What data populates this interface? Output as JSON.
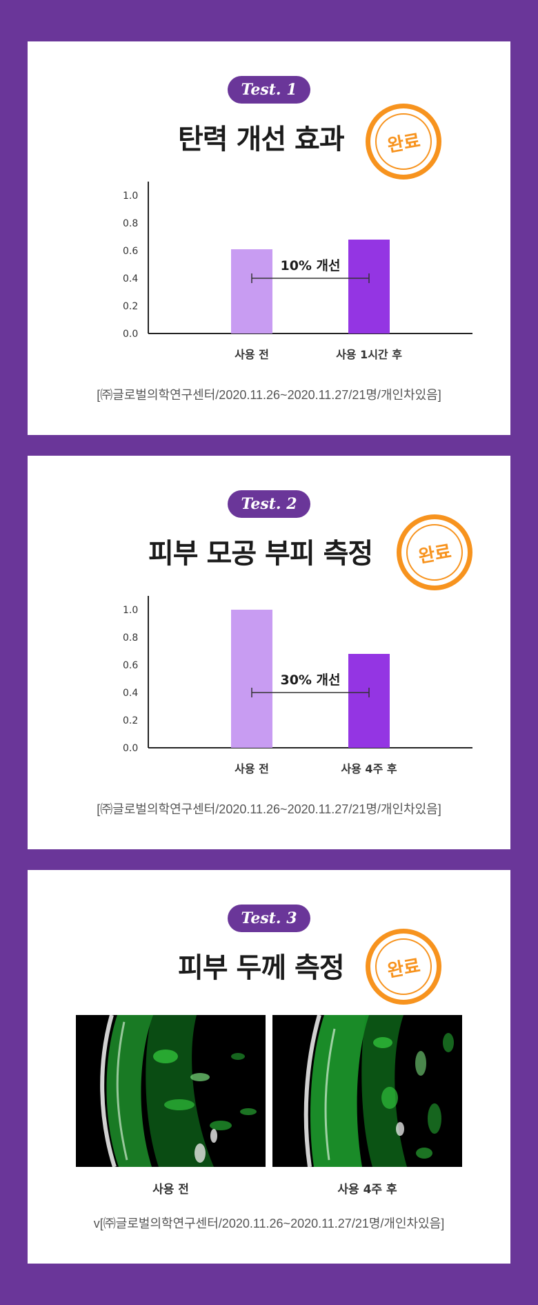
{
  "test1": {
    "pill": "Test. 1",
    "title": "탄력 개선 효과",
    "badge": "완료",
    "source": "[㈜글로벌의학연구센터/2020.11.26~2020.11.27/21명/개인차있음]"
  },
  "test2": {
    "pill": "Test. 2",
    "title": "피부 모공 부피 측정",
    "badge": "완료",
    "source": "[㈜글로벌의학연구센터/2020.11.26~2020.11.27/21명/개인차있음]"
  },
  "test3": {
    "pill": "Test. 3",
    "title": "피부 두께 측정",
    "badge": "완료",
    "image_labels": [
      "사용 전",
      "사용 4주 후"
    ],
    "source": "v[㈜글로벌의학연구센터/2020.11.26~2020.11.27/21명/개인차있음]"
  },
  "colors": {
    "background": "#6a3699",
    "bar_before": "#c89cf2",
    "bar_after": "#9435e3",
    "badge": "#f7931e"
  },
  "chart_data": [
    {
      "type": "bar",
      "categories": [
        "사용 전",
        "사용 1시간 후"
      ],
      "values": [
        0.61,
        0.68
      ],
      "yticks": [
        "0.0",
        "0.2",
        "0.4",
        "0.6",
        "0.8",
        "1.0"
      ],
      "ylim": [
        0,
        1.1
      ],
      "annotation": "10% 개선",
      "annotation_y": 0.4
    },
    {
      "type": "bar",
      "categories": [
        "사용 전",
        "사용 4주 후"
      ],
      "values": [
        1.0,
        0.68
      ],
      "yticks": [
        "0.0",
        "0.2",
        "0.4",
        "0.6",
        "0.8",
        "1.0"
      ],
      "ylim": [
        0,
        1.1
      ],
      "annotation": "30% 개선",
      "annotation_y": 0.4
    }
  ]
}
